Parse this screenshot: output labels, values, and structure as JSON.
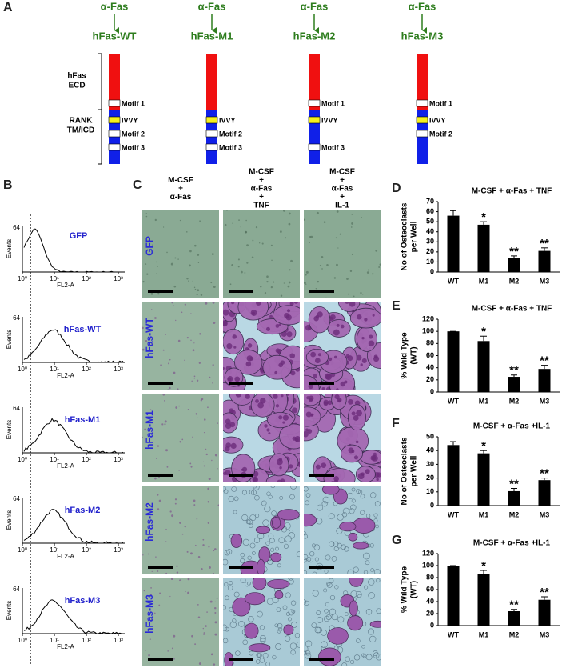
{
  "panel_a": {
    "label": "A",
    "ecd_label": [
      "hFas",
      "ECD"
    ],
    "tm_label": [
      "RANK",
      "TM/ICD"
    ],
    "constructs": [
      {
        "antibody": "α-Fas",
        "name": "hFas-WT",
        "motifs": [
          "Motif 1",
          "IVVY",
          "Motif 2",
          "Motif 3"
        ]
      },
      {
        "antibody": "α-Fas",
        "name": "hFas-M1",
        "motifs": [
          null,
          "IVVY",
          "Motif 2",
          "Motif 3"
        ]
      },
      {
        "antibody": "α-Fas",
        "name": "hFas-M2",
        "motifs": [
          "Motif 1",
          "IVVY",
          null,
          "Motif 3"
        ]
      },
      {
        "antibody": "α-Fas",
        "name": "hFas-M3",
        "motifs": [
          "Motif 1",
          "IVVY",
          "Motif 2",
          null
        ]
      }
    ]
  },
  "panel_b": {
    "label": "B",
    "samples": [
      "GFP",
      "hFas-WT",
      "hFas-M1",
      "hFas-M2",
      "hFas-M3"
    ],
    "y_label": "Events",
    "x_label": "FL2-A",
    "y_tick": "64",
    "x_ticks": [
      "10⁰",
      "10¹",
      "10²",
      "10³"
    ]
  },
  "panel_c": {
    "label": "C",
    "columns": [
      [
        "M-CSF",
        "+",
        "α-Fas"
      ],
      [
        "M-CSF",
        "+",
        "α-Fas",
        "+",
        "TNF"
      ],
      [
        "M-CSF",
        "+",
        "α-Fas",
        "+",
        "IL-1"
      ]
    ],
    "rows": [
      "GFP",
      "hFas-WT",
      "hFas-M1",
      "hFas-M2",
      "hFas-M3"
    ]
  },
  "chart_data": [
    {
      "type": "bar",
      "panel_label": "D",
      "title": "M-CSF + α-Fas + TNF",
      "y_label": [
        "No of Osteoclasts",
        "per Well"
      ],
      "categories": [
        "WT",
        "M1",
        "M2",
        "M3"
      ],
      "values": [
        56,
        47,
        14,
        21
      ],
      "errors": [
        5,
        3,
        2,
        3
      ],
      "significance": [
        null,
        "*",
        "**",
        "**"
      ],
      "color": "#000000",
      "ylim": [
        0,
        70
      ],
      "yticks": [
        0,
        10,
        20,
        30,
        40,
        50,
        60,
        70
      ]
    },
    {
      "type": "bar",
      "panel_label": "E",
      "title": "M-CSF + α-Fas + TNF",
      "y_label": [
        "% Wild Type",
        "(WT)"
      ],
      "categories": [
        "WT",
        "M1",
        "M2",
        "M3"
      ],
      "values": [
        100,
        84,
        25,
        38
      ],
      "errors": [
        0,
        8,
        3,
        6
      ],
      "significance": [
        null,
        "*",
        "**",
        "**"
      ],
      "color": "#000000",
      "ylim": [
        0,
        120
      ],
      "yticks": [
        0,
        20,
        40,
        60,
        80,
        100,
        120
      ]
    },
    {
      "type": "bar",
      "panel_label": "F",
      "title": "M-CSF + α-Fas +IL-1",
      "y_label": [
        "No of Osteoclasts",
        "per Well"
      ],
      "categories": [
        "WT",
        "M1",
        "M2",
        "M3"
      ],
      "values": [
        44,
        38,
        10.5,
        18.5
      ],
      "errors": [
        2.5,
        2,
        2,
        1.5
      ],
      "significance": [
        null,
        "*",
        "**",
        "**"
      ],
      "color": "#000000",
      "ylim": [
        0,
        50
      ],
      "yticks": [
        0,
        10,
        20,
        30,
        40,
        50
      ]
    },
    {
      "type": "bar",
      "panel_label": "G",
      "title": "M-CSF + α-Fas +IL-1",
      "y_label": [
        "% Wild Type",
        "(WT)"
      ],
      "categories": [
        "WT",
        "M1",
        "M2",
        "M3"
      ],
      "values": [
        100,
        86,
        24,
        43
      ],
      "errors": [
        0,
        6,
        3,
        5
      ],
      "significance": [
        null,
        "*",
        "**",
        "**"
      ],
      "color": "#000000",
      "ylim": [
        0,
        120
      ],
      "yticks": [
        0,
        20,
        40,
        60,
        80,
        100,
        120
      ]
    }
  ]
}
